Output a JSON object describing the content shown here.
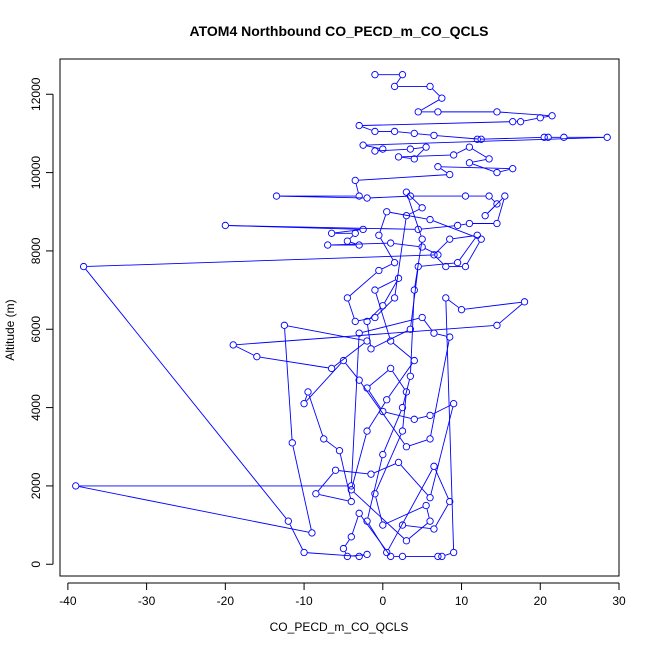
{
  "chart_data": {
    "type": "line",
    "title": "ATOM4 Northbound CO_PECD_m_CO_QCLS",
    "xlabel": "CO_PECD_m_CO_QCLS",
    "ylabel": "Altitude (m)",
    "xlim": [
      -41,
      30
    ],
    "ylim": [
      -300,
      12900
    ],
    "x_ticks": [
      -40,
      -30,
      -20,
      -10,
      0,
      10,
      20,
      30
    ],
    "y_ticks": [
      0,
      2000,
      4000,
      6000,
      8000,
      10000,
      12000
    ],
    "grid": false,
    "legend": "none",
    "colors": {
      "series": "#0000ff",
      "axis": "#000000",
      "background": "#ffffff"
    },
    "series": [
      {
        "marker": "open-circle",
        "points": [
          [
            -1,
            12500
          ],
          [
            2.5,
            12500
          ],
          [
            1.5,
            12200
          ],
          [
            6,
            12200
          ],
          [
            7.5,
            11900
          ],
          [
            4.5,
            11550
          ],
          [
            7,
            11550
          ],
          [
            14.5,
            11550
          ],
          [
            21.5,
            11450
          ],
          [
            20,
            11400
          ],
          [
            17.5,
            11300
          ],
          [
            16.5,
            11300
          ],
          [
            -3,
            11200
          ],
          [
            -1,
            11050
          ],
          [
            1.5,
            11050
          ],
          [
            4,
            11000
          ],
          [
            6.5,
            10950
          ],
          [
            12.5,
            10850
          ],
          [
            12,
            10850
          ],
          [
            20.5,
            10900
          ],
          [
            21,
            10900
          ],
          [
            23,
            10900
          ],
          [
            28.5,
            10900
          ],
          [
            -2.5,
            10700
          ],
          [
            0,
            10600
          ],
          [
            -1,
            10550
          ],
          [
            3.5,
            10600
          ],
          [
            5.5,
            10650
          ],
          [
            4,
            10350
          ],
          [
            2,
            10400
          ],
          [
            9,
            10450
          ],
          [
            11,
            10650
          ],
          [
            13.5,
            10350
          ],
          [
            11,
            10250
          ],
          [
            14.5,
            10000
          ],
          [
            16.5,
            10100
          ],
          [
            7,
            10150
          ],
          [
            8.5,
            9950
          ],
          [
            -3.5,
            9800
          ],
          [
            -3,
            9400
          ],
          [
            -13.5,
            9400
          ],
          [
            -2,
            9350
          ],
          [
            3.5,
            9400
          ],
          [
            10.5,
            9400
          ],
          [
            13.5,
            9400
          ],
          [
            14.5,
            9200
          ],
          [
            13,
            8900
          ],
          [
            15.5,
            9400
          ],
          [
            14.5,
            8700
          ],
          [
            11,
            8700
          ],
          [
            9.5,
            8650
          ],
          [
            4.5,
            8550
          ],
          [
            -20,
            8650
          ],
          [
            -2.5,
            8550
          ],
          [
            -6.5,
            8450
          ],
          [
            -3.5,
            8450
          ],
          [
            -4.5,
            8250
          ],
          [
            -3,
            8150
          ],
          [
            -7,
            8150
          ],
          [
            1,
            8200
          ],
          [
            5,
            8100
          ],
          [
            7,
            7900
          ],
          [
            -38,
            7600
          ],
          [
            -12,
            1100
          ],
          [
            -10,
            300
          ],
          [
            -3,
            200
          ],
          [
            -2,
            250
          ],
          [
            -4.5,
            200
          ],
          [
            -5,
            400
          ],
          [
            -4,
            700
          ],
          [
            -3,
            1300
          ],
          [
            1,
            200
          ],
          [
            2.5,
            200
          ],
          [
            7,
            200
          ],
          [
            7.5,
            200
          ],
          [
            9,
            300
          ],
          [
            8,
            6800
          ],
          [
            10,
            6500
          ],
          [
            18,
            6700
          ],
          [
            14.5,
            6100
          ],
          [
            -19,
            5600
          ],
          [
            -16,
            5300
          ],
          [
            -6.5,
            5000
          ],
          [
            -2,
            5700
          ],
          [
            -12.5,
            6100
          ],
          [
            -11.5,
            3100
          ],
          [
            -9,
            800
          ],
          [
            -39,
            2000
          ],
          [
            -4,
            2000
          ],
          [
            -3,
            5900
          ],
          [
            5,
            6300
          ],
          [
            6.5,
            5900
          ],
          [
            8.5,
            5800
          ],
          [
            6,
            3200
          ],
          [
            3,
            3000
          ],
          [
            -3,
            4700
          ],
          [
            -5,
            5200
          ],
          [
            -10,
            4100
          ],
          [
            -9.5,
            4400
          ],
          [
            -7.5,
            3200
          ],
          [
            -5.5,
            2900
          ],
          [
            -4,
            1600
          ],
          [
            -8.5,
            1800
          ],
          [
            -6,
            2400
          ],
          [
            -1.5,
            2300
          ],
          [
            2,
            2600
          ],
          [
            6,
            1700
          ],
          [
            9,
            4100
          ],
          [
            6,
            3800
          ],
          [
            4,
            3700
          ],
          [
            0,
            3900
          ],
          [
            -2,
            4500
          ],
          [
            1,
            5000
          ],
          [
            3,
            4400
          ],
          [
            2.5,
            3400
          ],
          [
            -1,
            1800
          ],
          [
            0,
            1000
          ],
          [
            5.5,
            1500
          ],
          [
            6,
            1100
          ],
          [
            3,
            600
          ],
          [
            -4,
            1900
          ],
          [
            -2,
            3400
          ],
          [
            0.5,
            4200
          ],
          [
            4,
            5200
          ],
          [
            1,
            5700
          ],
          [
            -1,
            7000
          ],
          [
            2,
            7300
          ],
          [
            0,
            6600
          ],
          [
            -2,
            6200
          ],
          [
            -1.5,
            5500
          ],
          [
            3.5,
            6000
          ],
          [
            4.5,
            7600
          ],
          [
            9.5,
            7700
          ],
          [
            12,
            8400
          ],
          [
            8.5,
            8300
          ],
          [
            6.5,
            7900
          ],
          [
            8,
            7600
          ],
          [
            10.5,
            7600
          ],
          [
            12.5,
            8300
          ],
          [
            6,
            8800
          ],
          [
            0.5,
            9000
          ],
          [
            -0.5,
            8400
          ],
          [
            1.5,
            7700
          ],
          [
            -0.5,
            7500
          ],
          [
            -4.5,
            6800
          ],
          [
            -3.5,
            6200
          ],
          [
            -1,
            6300
          ],
          [
            1.5,
            6800
          ],
          [
            3,
            8900
          ],
          [
            5,
            9100
          ],
          [
            3,
            9500
          ],
          [
            5,
            8300
          ],
          [
            4,
            7000
          ],
          [
            3.5,
            4800
          ],
          [
            2.5,
            4000
          ],
          [
            0,
            2800
          ],
          [
            -2,
            1100
          ],
          [
            0.5,
            300
          ],
          [
            6.5,
            2500
          ],
          [
            8.5,
            1600
          ],
          [
            6.5,
            900
          ],
          [
            2.5,
            1000
          ]
        ]
      }
    ]
  }
}
